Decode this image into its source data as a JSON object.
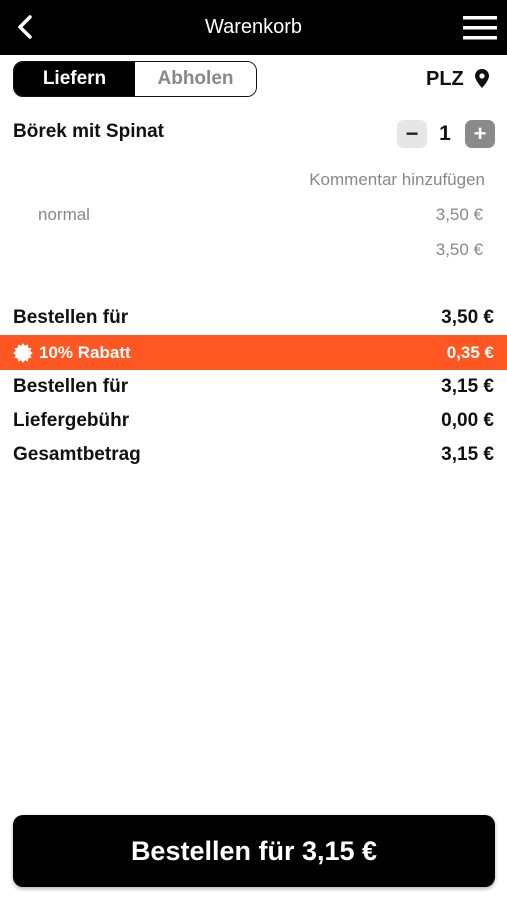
{
  "header": {
    "title": "Warenkorb"
  },
  "delivery_toggle": {
    "options": [
      "Liefern",
      "Abholen"
    ],
    "selected": 0
  },
  "location": {
    "label": "PLZ"
  },
  "cart": {
    "items": [
      {
        "name": "Börek mit Spinat",
        "quantity": 1,
        "comment_action": "Kommentar hinzufügen",
        "options": [
          {
            "name": "normal",
            "price": "3,50 €"
          }
        ],
        "total": "3,50 €"
      }
    ]
  },
  "summary": {
    "rows": [
      {
        "label": "Bestellen für",
        "amount": "3,50 €"
      },
      {
        "label": "10% Rabatt",
        "amount": "0,35 €",
        "highlight": true
      },
      {
        "label": "Bestellen für",
        "amount": "3,15 €"
      },
      {
        "label": "Liefergebühr",
        "amount": "0,00 €"
      },
      {
        "label": "Gesamtbetrag",
        "amount": "3,15 €"
      }
    ]
  },
  "checkout_button": {
    "label": "Bestellen für 3,15 €"
  }
}
